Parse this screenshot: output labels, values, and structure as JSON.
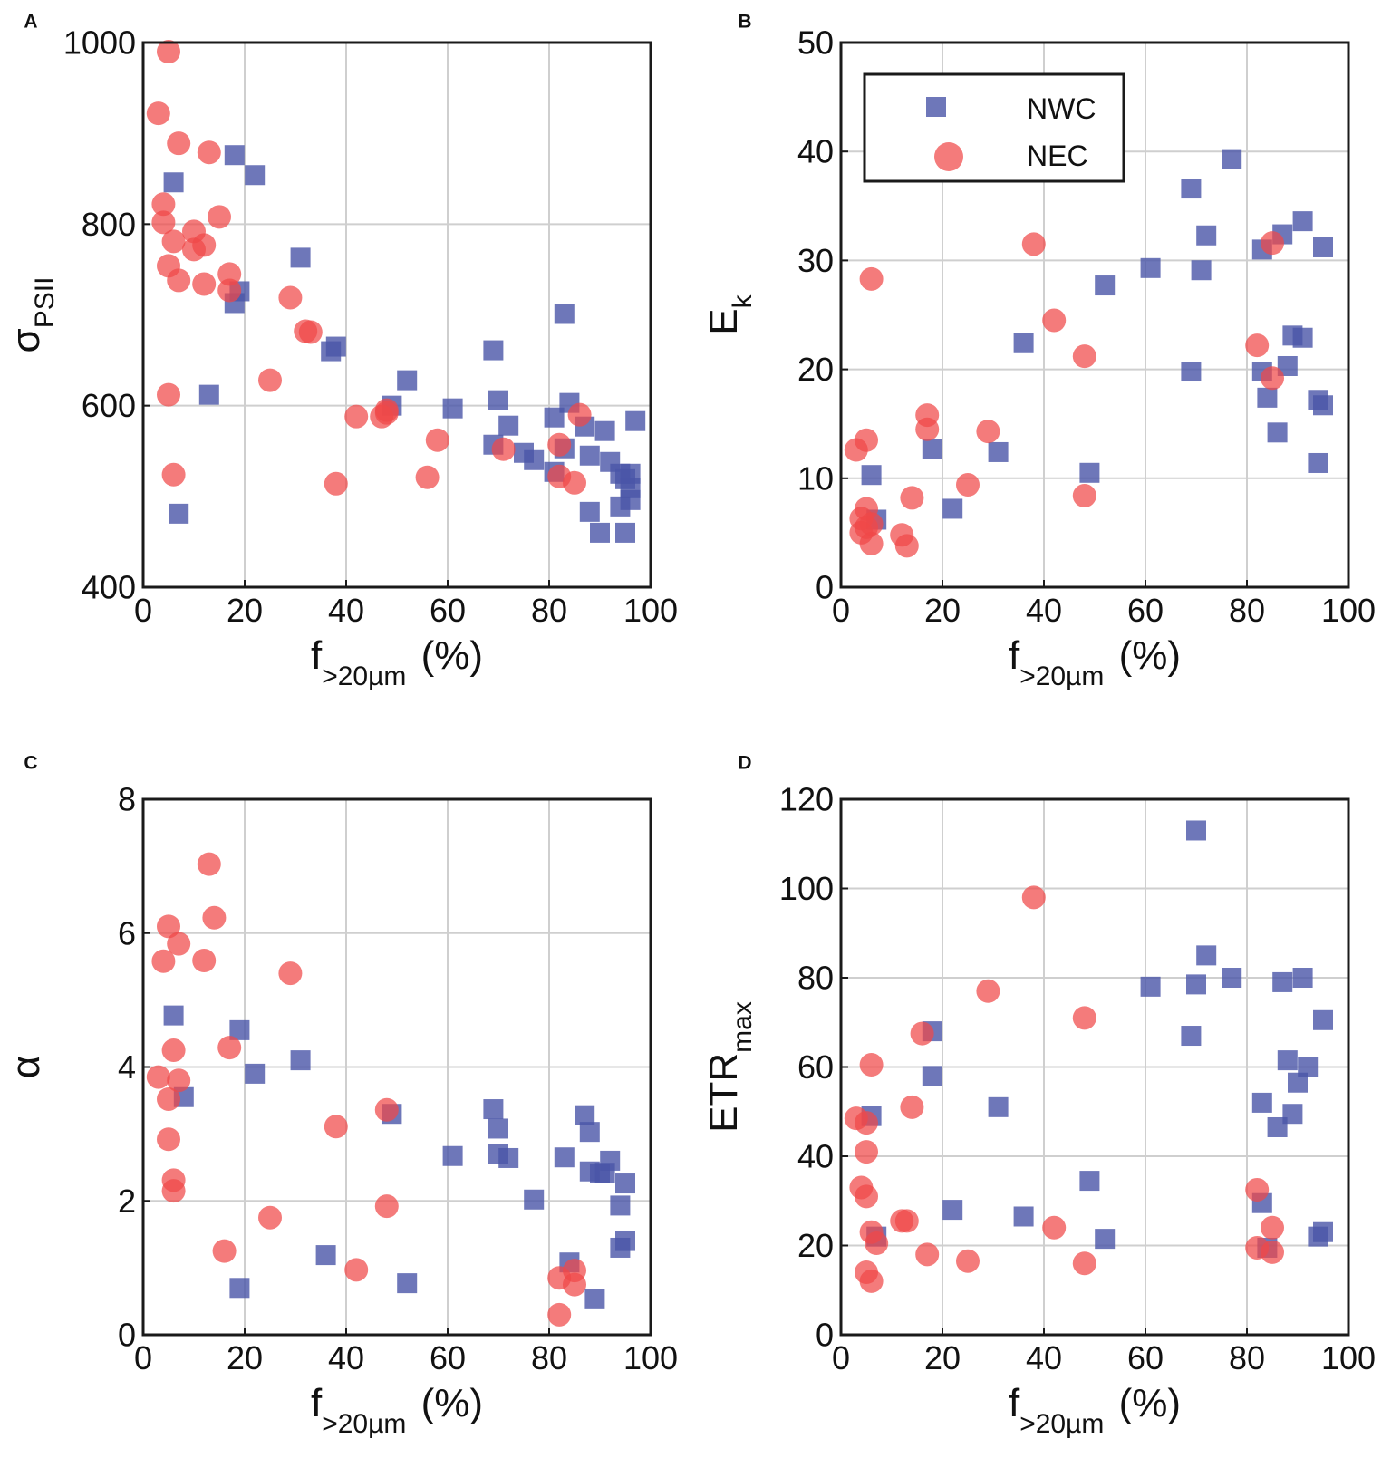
{
  "colors": {
    "NWC": "#4a55a8",
    "NEC": "#f04848",
    "grid": "#cfcfcf",
    "axis": "#1a1a1a"
  },
  "legend": {
    "entries": [
      {
        "name": "NWC",
        "marker": "square"
      },
      {
        "name": "NEC",
        "marker": "circle"
      }
    ],
    "placement": "top-left of panel B"
  },
  "chart_data": [
    {
      "panel": "A",
      "type": "scatter",
      "xlabel_main": "f",
      "xlabel_sub": ">20µm",
      "xlabel_tail": " (%)",
      "ylabel_main": "σ",
      "ylabel_sub": "PSII",
      "xlim": [
        0,
        100
      ],
      "ylim": [
        400,
        1000
      ],
      "xticks": [
        0,
        20,
        40,
        60,
        80,
        100
      ],
      "yticks": [
        400,
        600,
        800,
        1000
      ],
      "grid": true,
      "series": [
        {
          "name": "NWC",
          "marker": "square",
          "points": [
            [
              6,
              846
            ],
            [
              18,
              876
            ],
            [
              22,
              854
            ],
            [
              13,
              612
            ],
            [
              7,
              481
            ],
            [
              19,
              726
            ],
            [
              18,
              713
            ],
            [
              31,
              763
            ],
            [
              37,
              660
            ],
            [
              38,
              665
            ],
            [
              49,
              600
            ],
            [
              52,
              628
            ],
            [
              61,
              597
            ],
            [
              69,
              661
            ],
            [
              70,
              606
            ],
            [
              69,
              557
            ],
            [
              72,
              578
            ],
            [
              75,
              548
            ],
            [
              77,
              540
            ],
            [
              81,
              587
            ],
            [
              81,
              527
            ],
            [
              83,
              701
            ],
            [
              84,
              603
            ],
            [
              83,
              553
            ],
            [
              87,
              577
            ],
            [
              88,
              545
            ],
            [
              88,
              483
            ],
            [
              90,
              460
            ],
            [
              91,
              572
            ],
            [
              92,
              538
            ],
            [
              94,
              525
            ],
            [
              94,
              489
            ],
            [
              95,
              519
            ],
            [
              95,
              460
            ],
            [
              96,
              525
            ],
            [
              96,
              509
            ],
            [
              96,
              496
            ],
            [
              97,
              583
            ]
          ]
        },
        {
          "name": "NEC",
          "marker": "circle",
          "points": [
            [
              5,
              990
            ],
            [
              3,
              922
            ],
            [
              7,
              889
            ],
            [
              13,
              879
            ],
            [
              4,
              822
            ],
            [
              4,
              802
            ],
            [
              10,
              792
            ],
            [
              15,
              808
            ],
            [
              6,
              781
            ],
            [
              10,
              772
            ],
            [
              12,
              777
            ],
            [
              5,
              754
            ],
            [
              7,
              738
            ],
            [
              12,
              734
            ],
            [
              17,
              745
            ],
            [
              17,
              727
            ],
            [
              5,
              612
            ],
            [
              6,
              524
            ],
            [
              29,
              719
            ],
            [
              32,
              682
            ],
            [
              33,
              681
            ],
            [
              25,
              628
            ],
            [
              42,
              588
            ],
            [
              47,
              588
            ],
            [
              48,
              592
            ],
            [
              48,
              595
            ],
            [
              58,
              562
            ],
            [
              56,
              521
            ],
            [
              38,
              514
            ],
            [
              71,
              552
            ],
            [
              82,
              557
            ],
            [
              82,
              522
            ],
            [
              85,
              515
            ],
            [
              86,
              590
            ]
          ]
        }
      ]
    },
    {
      "panel": "B",
      "type": "scatter",
      "xlabel_main": "f",
      "xlabel_sub": ">20µm",
      "xlabel_tail": " (%)",
      "ylabel_main": "E",
      "ylabel_sub": "k",
      "xlim": [
        0,
        100
      ],
      "ylim": [
        0,
        50
      ],
      "xticks": [
        0,
        20,
        40,
        60,
        80,
        100
      ],
      "yticks": [
        0,
        10,
        20,
        30,
        40,
        50
      ],
      "grid": true,
      "series": [
        {
          "name": "NWC",
          "marker": "square",
          "points": [
            [
              6,
              10.3
            ],
            [
              7,
              6.2
            ],
            [
              18,
              12.7
            ],
            [
              22,
              7.2
            ],
            [
              31,
              12.4
            ],
            [
              36,
              22.4
            ],
            [
              49,
              10.5
            ],
            [
              52,
              27.7
            ],
            [
              61,
              29.3
            ],
            [
              69,
              19.8
            ],
            [
              69,
              36.6
            ],
            [
              71,
              29.1
            ],
            [
              72,
              32.3
            ],
            [
              77,
              39.3
            ],
            [
              83,
              31
            ],
            [
              83,
              19.8
            ],
            [
              84,
              17.4
            ],
            [
              86,
              14.2
            ],
            [
              87,
              32.4
            ],
            [
              88,
              20.3
            ],
            [
              89,
              23.1
            ],
            [
              91,
              33.6
            ],
            [
              91,
              22.9
            ],
            [
              94,
              17.2
            ],
            [
              94,
              11.4
            ],
            [
              95,
              31.2
            ],
            [
              95,
              16.7
            ]
          ]
        },
        {
          "name": "NEC",
          "marker": "circle",
          "points": [
            [
              3,
              12.6
            ],
            [
              5,
              13.5
            ],
            [
              6,
              28.3
            ],
            [
              5,
              7.2
            ],
            [
              4,
              6.3
            ],
            [
              4,
              5.0
            ],
            [
              5,
              5.5
            ],
            [
              6,
              5.8
            ],
            [
              6,
              4.0
            ],
            [
              12,
              4.8
            ],
            [
              13,
              3.8
            ],
            [
              14,
              8.2
            ],
            [
              17,
              14.5
            ],
            [
              17,
              15.8
            ],
            [
              25,
              9.4
            ],
            [
              29,
              14.3
            ],
            [
              38,
              31.5
            ],
            [
              42,
              24.5
            ],
            [
              48,
              21.2
            ],
            [
              48,
              8.4
            ],
            [
              82,
              22.2
            ],
            [
              85,
              19.2
            ],
            [
              85,
              31.6
            ]
          ]
        }
      ]
    },
    {
      "panel": "C",
      "type": "scatter",
      "xlabel_main": "f",
      "xlabel_sub": ">20µm",
      "xlabel_tail": " (%)",
      "ylabel_main": "α",
      "ylabel_sub": "",
      "xlim": [
        0,
        100
      ],
      "ylim": [
        0,
        8
      ],
      "xticks": [
        0,
        20,
        40,
        60,
        80,
        100
      ],
      "yticks": [
        0,
        2,
        4,
        6,
        8
      ],
      "grid": true,
      "series": [
        {
          "name": "NWC",
          "marker": "square",
          "points": [
            [
              6,
              4.77
            ],
            [
              8,
              3.55
            ],
            [
              19,
              4.55
            ],
            [
              22,
              3.9
            ],
            [
              31,
              4.1
            ],
            [
              19,
              0.7
            ],
            [
              36,
              1.19
            ],
            [
              49,
              3.3
            ],
            [
              52,
              0.77
            ],
            [
              61,
              2.67
            ],
            [
              69,
              3.37
            ],
            [
              70,
              3.08
            ],
            [
              70,
              2.7
            ],
            [
              72,
              2.64
            ],
            [
              77,
              2.02
            ],
            [
              83,
              2.65
            ],
            [
              84,
              1.08
            ],
            [
              87,
              3.28
            ],
            [
              88,
              3.03
            ],
            [
              88,
              2.44
            ],
            [
              89,
              0.53
            ],
            [
              90,
              2.41
            ],
            [
              91,
              2.42
            ],
            [
              92,
              2.6
            ],
            [
              94,
              1.93
            ],
            [
              94,
              1.3
            ],
            [
              95,
              2.26
            ],
            [
              95,
              1.4
            ]
          ]
        },
        {
          "name": "NEC",
          "marker": "circle",
          "points": [
            [
              13,
              7.03
            ],
            [
              14,
              6.23
            ],
            [
              5,
              6.1
            ],
            [
              7,
              5.84
            ],
            [
              4,
              5.58
            ],
            [
              12,
              5.59
            ],
            [
              29,
              5.4
            ],
            [
              17,
              4.29
            ],
            [
              6,
              4.25
            ],
            [
              3,
              3.85
            ],
            [
              7,
              3.8
            ],
            [
              5,
              3.52
            ],
            [
              5,
              2.92
            ],
            [
              6,
              2.31
            ],
            [
              6,
              2.15
            ],
            [
              16,
              1.25
            ],
            [
              25,
              1.75
            ],
            [
              38,
              3.11
            ],
            [
              42,
              0.97
            ],
            [
              48,
              3.36
            ],
            [
              48,
              1.92
            ],
            [
              82,
              0.85
            ],
            [
              82,
              0.3
            ],
            [
              85,
              0.96
            ],
            [
              85,
              0.75
            ]
          ]
        }
      ]
    },
    {
      "panel": "D",
      "type": "scatter",
      "xlabel_main": "f",
      "xlabel_sub": ">20µm",
      "xlabel_tail": " (%)",
      "ylabel_main": "ETR",
      "ylabel_sub": "max",
      "xlim": [
        0,
        100
      ],
      "ylim": [
        0,
        120
      ],
      "xticks": [
        0,
        20,
        40,
        60,
        80,
        100
      ],
      "yticks": [
        0,
        20,
        40,
        60,
        80,
        100,
        120
      ],
      "grid": true,
      "series": [
        {
          "name": "NWC",
          "marker": "square",
          "points": [
            [
              6,
              49
            ],
            [
              7,
              22
            ],
            [
              18,
              68
            ],
            [
              18,
              58
            ],
            [
              22,
              28
            ],
            [
              31,
              51
            ],
            [
              36,
              26.5
            ],
            [
              49,
              34.5
            ],
            [
              52,
              21.5
            ],
            [
              61,
              78
            ],
            [
              69,
              67
            ],
            [
              70,
              113
            ],
            [
              70,
              78.5
            ],
            [
              72,
              85
            ],
            [
              77,
              80
            ],
            [
              83,
              52
            ],
            [
              83,
              29.5
            ],
            [
              84,
              19.5
            ],
            [
              86,
              46.5
            ],
            [
              87,
              79
            ],
            [
              88,
              61.5
            ],
            [
              89,
              49.5
            ],
            [
              90,
              56.5
            ],
            [
              91,
              80
            ],
            [
              92,
              60
            ],
            [
              94,
              22
            ],
            [
              95,
              23
            ],
            [
              95,
              70.5
            ]
          ]
        },
        {
          "name": "NEC",
          "marker": "circle",
          "points": [
            [
              3,
              48.5
            ],
            [
              4,
              33
            ],
            [
              5,
              47.5
            ],
            [
              5,
              41
            ],
            [
              5,
              31
            ],
            [
              5,
              14
            ],
            [
              6,
              60.5
            ],
            [
              6,
              23
            ],
            [
              6,
              12
            ],
            [
              7,
              20.5
            ],
            [
              12,
              25.5
            ],
            [
              13,
              25.5
            ],
            [
              14,
              51
            ],
            [
              16,
              67.5
            ],
            [
              17,
              18
            ],
            [
              25,
              16.5
            ],
            [
              29,
              77
            ],
            [
              38,
              98
            ],
            [
              42,
              24
            ],
            [
              48,
              71
            ],
            [
              48,
              16
            ],
            [
              82,
              32.5
            ],
            [
              82,
              19.5
            ],
            [
              85,
              24
            ],
            [
              85,
              18.5
            ]
          ]
        }
      ]
    }
  ]
}
